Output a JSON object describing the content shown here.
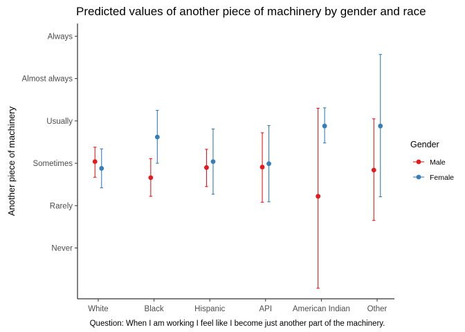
{
  "chart_data": {
    "type": "scatter",
    "title": "Predicted values of another piece of machinery by gender and race",
    "xlabel": "",
    "ylabel": "Another piece of machinery",
    "caption": "Question: When I am working I feel like I become just another part of the machinery.",
    "categories": [
      "White",
      "Black",
      "Hispanic",
      "API",
      "American Indian",
      "Other"
    ],
    "y_ticks": [
      {
        "value": 1,
        "label": "Never"
      },
      {
        "value": 2,
        "label": "Rarely"
      },
      {
        "value": 3,
        "label": "Sometimes"
      },
      {
        "value": 4,
        "label": "Usually"
      },
      {
        "value": 5,
        "label": "Almost always"
      },
      {
        "value": 6,
        "label": "Always"
      }
    ],
    "ylim": [
      -0.2,
      6.3
    ],
    "grid": false,
    "legend": {
      "title": "Gender",
      "placement": "right"
    },
    "series": [
      {
        "name": "Male",
        "color": "#e41a1c",
        "points": [
          {
            "category": "White",
            "y": 3.04,
            "low": 2.67,
            "high": 3.38
          },
          {
            "category": "Black",
            "y": 2.66,
            "low": 2.22,
            "high": 3.11
          },
          {
            "category": "Hispanic",
            "y": 2.9,
            "low": 2.45,
            "high": 3.33
          },
          {
            "category": "API",
            "y": 2.91,
            "low": 2.08,
            "high": 3.72
          },
          {
            "category": "American Indian",
            "y": 2.22,
            "low": 0.05,
            "high": 4.3
          },
          {
            "category": "Other",
            "y": 2.84,
            "low": 1.65,
            "high": 4.05
          }
        ]
      },
      {
        "name": "Female",
        "color": "#377eb8",
        "points": [
          {
            "category": "White",
            "y": 2.88,
            "low": 2.42,
            "high": 3.34
          },
          {
            "category": "Black",
            "y": 3.62,
            "low": 3.0,
            "high": 4.25
          },
          {
            "category": "Hispanic",
            "y": 3.04,
            "low": 2.27,
            "high": 3.81
          },
          {
            "category": "API",
            "y": 2.99,
            "low": 2.09,
            "high": 3.89
          },
          {
            "category": "American Indian",
            "y": 3.88,
            "low": 3.48,
            "high": 4.31
          },
          {
            "category": "Other",
            "y": 3.88,
            "low": 2.21,
            "high": 5.57
          }
        ]
      }
    ]
  }
}
